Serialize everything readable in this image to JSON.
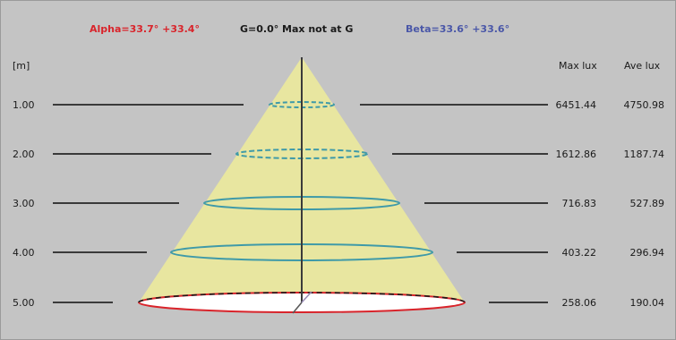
{
  "header": {
    "alpha": "Alpha=33.7° +33.4°",
    "center": "G=0.0°  Max not  at G",
    "beta": "Beta=33.6° +33.6°"
  },
  "columns": {
    "distance_unit": "[m]",
    "max_lux": "Max lux",
    "ave_lux": "Ave lux"
  },
  "colors": {
    "background": "#c4c4c4",
    "cone_fill": "#e8e6a0",
    "alpha_text": "#d9242b",
    "beta_text": "#4a57a8",
    "ring": "#3f9aa8",
    "base_ring": "#d9242b"
  },
  "levels": [
    {
      "distance": "1.00",
      "max_lux": "6451.44",
      "ave_lux": "4750.98"
    },
    {
      "distance": "2.00",
      "max_lux": "1612.86",
      "ave_lux": "1187.74"
    },
    {
      "distance": "3.00",
      "max_lux": "716.83",
      "ave_lux": "527.89"
    },
    {
      "distance": "4.00",
      "max_lux": "403.22",
      "ave_lux": "296.94"
    },
    {
      "distance": "5.00",
      "max_lux": "258.06",
      "ave_lux": "190.04"
    }
  ]
}
